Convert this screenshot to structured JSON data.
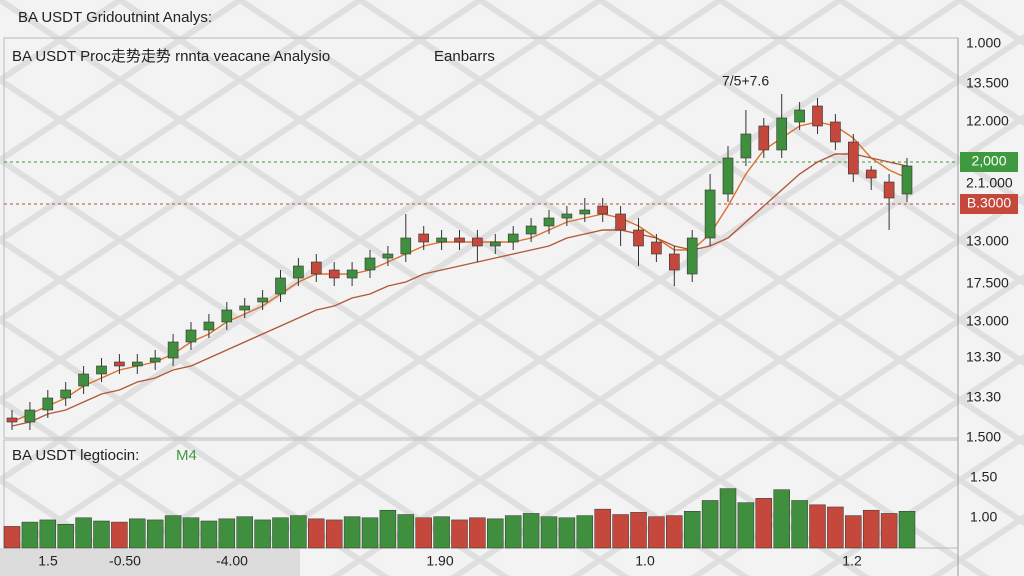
{
  "header": {
    "title": "BA  USDT Gridoutnint Analys:"
  },
  "chart_data": [
    {
      "type": "candlestick",
      "title": "BA USDT Proc走势走势 rnnta veacane Analysio",
      "subtitle": "Eanbarrs",
      "annotation": "7/5+7.6",
      "ylim": [
        0,
        100
      ],
      "up_color": "#3f8f3f",
      "down_color": "#c4483c",
      "open": [
        5,
        4,
        7,
        10,
        13,
        16,
        19,
        18,
        19,
        20,
        24,
        27,
        29,
        32,
        34,
        36,
        40,
        44,
        42,
        40,
        42,
        45,
        46,
        51,
        49,
        50,
        50,
        48,
        49,
        51,
        53,
        55,
        56,
        58,
        56,
        52,
        49,
        46,
        41,
        50,
        61,
        70,
        78,
        72,
        79,
        83,
        79,
        74,
        67,
        64,
        61
      ],
      "high": [
        7,
        9,
        12,
        14,
        18,
        20,
        21,
        21,
        22,
        26,
        29,
        31,
        34,
        35,
        37,
        42,
        45,
        46,
        44,
        44,
        47,
        48,
        56,
        53,
        52,
        52,
        52,
        51,
        53,
        55,
        57,
        58,
        60,
        60,
        58,
        55,
        51,
        48,
        52,
        66,
        73,
        82,
        80,
        86,
        84,
        85,
        81,
        76,
        68,
        66,
        70
      ],
      "low": [
        2,
        2,
        5,
        8,
        11,
        14,
        16,
        16,
        17,
        18,
        22,
        25,
        27,
        30,
        32,
        34,
        38,
        39,
        38,
        38,
        40,
        43,
        44,
        47,
        47,
        47,
        44,
        46,
        47,
        49,
        51,
        53,
        54,
        54,
        48,
        43,
        44,
        38,
        39,
        48,
        59,
        68,
        70,
        70,
        77,
        76,
        72,
        64,
        62,
        52,
        59
      ],
      "close": [
        4,
        7,
        10,
        12,
        16,
        18,
        18,
        19,
        20,
        24,
        27,
        29,
        32,
        33,
        35,
        40,
        43,
        41,
        40,
        42,
        45,
        46,
        50,
        49,
        50,
        49,
        48,
        49,
        51,
        53,
        55,
        56,
        57,
        56,
        52,
        48,
        46,
        42,
        50,
        62,
        70,
        76,
        72,
        80,
        82,
        78,
        74,
        66,
        65,
        60,
        68
      ],
      "series": [
        {
          "color": "#d9722f",
          "values": [
            4,
            6,
            8,
            10,
            13,
            15,
            17,
            18,
            19,
            21,
            24,
            26,
            29,
            31,
            33,
            36,
            39,
            41,
            41,
            41,
            42,
            44,
            46,
            48,
            49,
            49,
            49,
            49,
            49,
            50,
            52,
            54,
            55,
            56,
            55,
            53,
            50,
            47,
            47,
            51,
            58,
            66,
            72,
            75,
            78,
            79,
            78,
            75,
            70,
            67,
            65
          ]
        },
        {
          "color": "#b0583a",
          "values": [
            3,
            4,
            6,
            7,
            9,
            11,
            12,
            14,
            15,
            17,
            18,
            20,
            22,
            24,
            26,
            28,
            30,
            32,
            33,
            35,
            36,
            38,
            39,
            41,
            42,
            43,
            44,
            45,
            46,
            47,
            48,
            50,
            51,
            52,
            52,
            51,
            50,
            48,
            47,
            48,
            50,
            54,
            58,
            62,
            66,
            69,
            71,
            71,
            70,
            69,
            68
          ]
        }
      ],
      "price_lines": [
        {
          "value": 69,
          "label": "2,000",
          "color": "#3f9a3f"
        },
        {
          "value": 58.5,
          "label": "B.3000",
          "color": "#c4483c"
        }
      ],
      "axis_labels": [
        "1.000",
        "13.500",
        "12.000",
        "2.1.000",
        "13.000",
        "17.500",
        "13.000",
        "13.30",
        "13.30",
        "1.500"
      ]
    },
    {
      "type": "bar",
      "title": "BA USDT legtiocin:",
      "subtitle": "M4",
      "ylim": [
        0,
        100
      ],
      "values": [
        20,
        24,
        26,
        22,
        28,
        25,
        24,
        27,
        26,
        30,
        28,
        25,
        27,
        29,
        26,
        28,
        30,
        27,
        26,
        29,
        28,
        35,
        31,
        28,
        29,
        26,
        28,
        27,
        30,
        32,
        29,
        28,
        30,
        36,
        31,
        33,
        29,
        30,
        34,
        44,
        55,
        42,
        46,
        54,
        44,
        40,
        38,
        30,
        35,
        32,
        34
      ],
      "axis_labels": [
        "1.50",
        "1.00"
      ],
      "x_labels": [
        "1.5",
        "-0.50",
        "-4.00",
        "1.90",
        "1.0",
        "1.2"
      ]
    }
  ]
}
